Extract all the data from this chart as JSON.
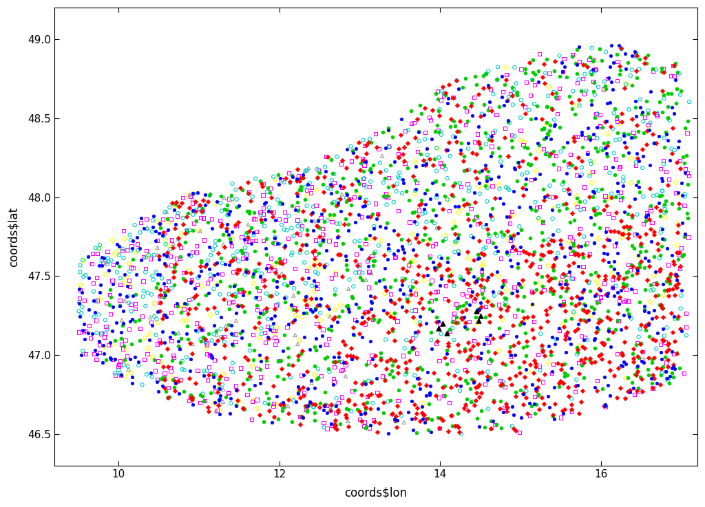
{
  "xlabel": "coords$lon",
  "ylabel": "coords$lat",
  "xlim": [
    9.2,
    17.2
  ],
  "ylim": [
    46.3,
    49.2
  ],
  "xticks": [
    10,
    12,
    14,
    16
  ],
  "yticks": [
    46.5,
    47.0,
    47.5,
    48.0,
    48.5,
    49.0
  ],
  "ytick_labels": [
    "46.5",
    "47.0",
    "47.5",
    "48.0",
    "48.5",
    "49.0"
  ],
  "xtick_labels": [
    "10",
    "12",
    "14",
    "16"
  ],
  "figsize": [
    10.24,
    7.37
  ],
  "dpi": 100,
  "background": "#ffffff",
  "marker_size": 12,
  "groups": [
    {
      "color": "#0000FF",
      "marker": "o",
      "filled": true,
      "size": 12,
      "zorder": 5,
      "lw": 0.3
    },
    {
      "color": "#00CC00",
      "marker": "o",
      "filled": true,
      "size": 14,
      "zorder": 4,
      "lw": 0.3
    },
    {
      "color": "#FF0000",
      "marker": "D",
      "filled": true,
      "size": 12,
      "zorder": 4,
      "lw": 0.3
    },
    {
      "color": "#FF00FF",
      "marker": "s",
      "filled": false,
      "size": 14,
      "zorder": 3,
      "lw": 0.8
    },
    {
      "color": "#00CCCC",
      "marker": "o",
      "filled": false,
      "size": 14,
      "zorder": 3,
      "lw": 0.8
    },
    {
      "color": "#FFFF00",
      "marker": "D",
      "filled": false,
      "size": 14,
      "zorder": 2,
      "lw": 0.8
    },
    {
      "color": "#999999",
      "marker": "^",
      "filled": false,
      "size": 14,
      "zorder": 2,
      "lw": 0.8
    },
    {
      "color": "#000000",
      "marker": "^",
      "filled": true,
      "size": 30,
      "zorder": 8,
      "lw": 0.5
    }
  ]
}
